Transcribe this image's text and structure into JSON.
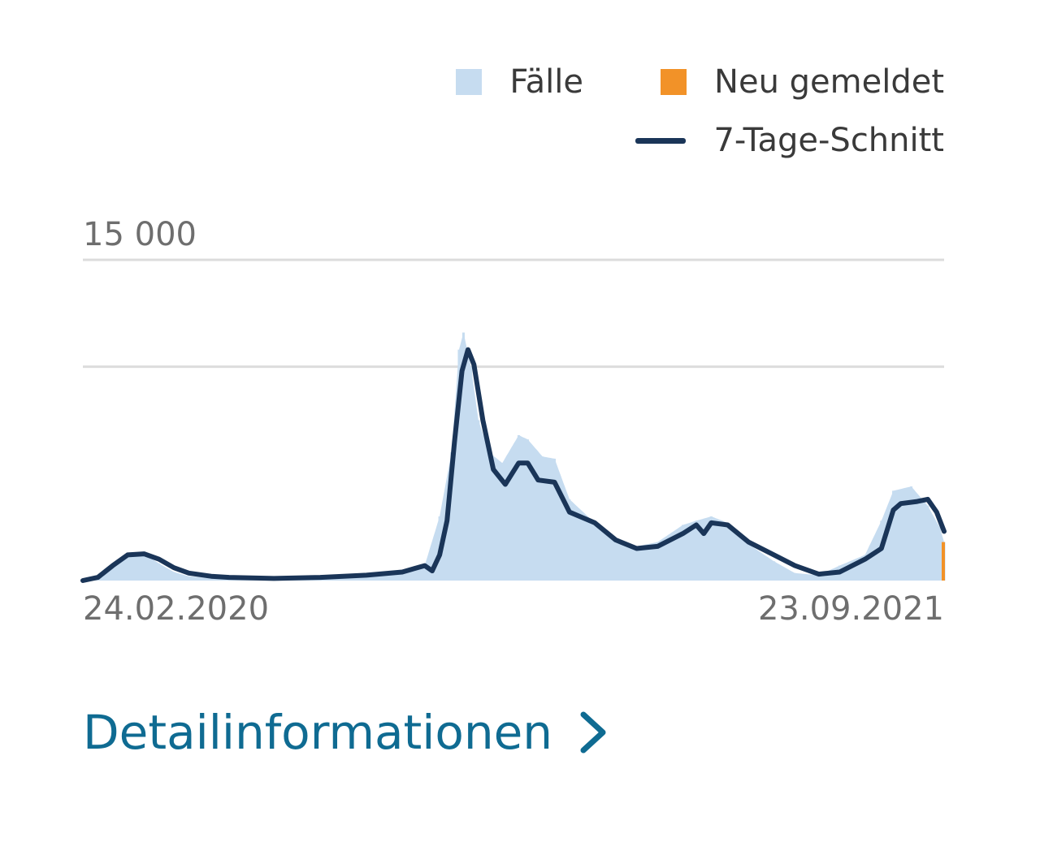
{
  "legend": {
    "cases_label": "Fälle",
    "new_label": "Neu gemeldet",
    "avg_label": "7-Tage-Schnitt"
  },
  "link": {
    "label": "Detailinformationen"
  },
  "chart_data": {
    "type": "bar",
    "title": "",
    "xlabel": "",
    "ylabel": "",
    "x_start": "24.02.2020",
    "x_end": "23.09.2021",
    "ylim": [
      0,
      15000
    ],
    "grid": true,
    "legend_position": "top-right",
    "y_ticks": [
      {
        "value": 15000,
        "label": "15 000"
      },
      {
        "value": 10000,
        "label": ""
      }
    ],
    "x_tick_labels": [
      "24.02.2020",
      "23.09.2021"
    ],
    "colors": {
      "cases": "#c6dcf0",
      "new": "#f29228",
      "avg": "#1a3558",
      "grid": "#dcdcdc",
      "link": "#0f6b92"
    },
    "series": [
      {
        "name": "Fälle",
        "kind": "bar",
        "points": [
          [
            "24.02.2020",
            0
          ],
          [
            "05.03.2020",
            150
          ],
          [
            "15.03.2020",
            700
          ],
          [
            "25.03.2020",
            1300
          ],
          [
            "05.04.2020",
            1250
          ],
          [
            "15.04.2020",
            800
          ],
          [
            "25.04.2020",
            400
          ],
          [
            "05.05.2020",
            200
          ],
          [
            "01.06.2020",
            50
          ],
          [
            "01.07.2020",
            60
          ],
          [
            "01.08.2020",
            150
          ],
          [
            "01.09.2020",
            300
          ],
          [
            "25.09.2020",
            400
          ],
          [
            "10.10.2020",
            700
          ],
          [
            "20.10.2020",
            3000
          ],
          [
            "28.10.2020",
            6000
          ],
          [
            "02.11.2020",
            10800
          ],
          [
            "05.11.2020",
            11600
          ],
          [
            "10.11.2020",
            10000
          ],
          [
            "15.11.2020",
            7500
          ],
          [
            "22.11.2020",
            6000
          ],
          [
            "01.12.2020",
            5500
          ],
          [
            "12.12.2020",
            6800
          ],
          [
            "18.12.2020",
            6600
          ],
          [
            "28.12.2020",
            5800
          ],
          [
            "05.01.2021",
            5700
          ],
          [
            "15.01.2021",
            3800
          ],
          [
            "01.02.2021",
            2700
          ],
          [
            "15.02.2021",
            2000
          ],
          [
            "01.03.2021",
            1600
          ],
          [
            "15.03.2021",
            1800
          ],
          [
            "01.04.2021",
            2600
          ],
          [
            "10.04.2021",
            2800
          ],
          [
            "20.04.2021",
            3000
          ],
          [
            "01.05.2021",
            2700
          ],
          [
            "15.05.2021",
            1700
          ],
          [
            "01.06.2021",
            900
          ],
          [
            "15.06.2021",
            350
          ],
          [
            "01.07.2021",
            250
          ],
          [
            "15.07.2021",
            700
          ],
          [
            "01.08.2021",
            1200
          ],
          [
            "12.08.2021",
            2800
          ],
          [
            "20.08.2021",
            4200
          ],
          [
            "01.09.2021",
            4400
          ],
          [
            "12.09.2021",
            3500
          ],
          [
            "20.09.2021",
            2500
          ],
          [
            "23.09.2021",
            1800
          ]
        ]
      },
      {
        "name": "Neu gemeldet",
        "kind": "bar",
        "points": [
          [
            "23.09.2021",
            1800
          ]
        ]
      },
      {
        "name": "7-Tage-Schnitt",
        "kind": "line",
        "points": [
          [
            "24.02.2020",
            0
          ],
          [
            "05.03.2020",
            150
          ],
          [
            "15.03.2020",
            700
          ],
          [
            "25.03.2020",
            1200
          ],
          [
            "05.04.2020",
            1250
          ],
          [
            "15.04.2020",
            1000
          ],
          [
            "25.04.2020",
            600
          ],
          [
            "05.05.2020",
            350
          ],
          [
            "20.05.2020",
            200
          ],
          [
            "01.06.2020",
            150
          ],
          [
            "01.07.2020",
            100
          ],
          [
            "01.08.2020",
            150
          ],
          [
            "01.09.2020",
            250
          ],
          [
            "25.09.2020",
            400
          ],
          [
            "10.10.2020",
            700
          ],
          [
            "15.10.2020",
            450
          ],
          [
            "20.10.2020",
            1200
          ],
          [
            "25.10.2020",
            2800
          ],
          [
            "30.10.2020",
            6500
          ],
          [
            "04.11.2020",
            9800
          ],
          [
            "08.11.2020",
            10800
          ],
          [
            "12.11.2020",
            10100
          ],
          [
            "18.11.2020",
            7500
          ],
          [
            "25.11.2020",
            5200
          ],
          [
            "03.12.2020",
            4500
          ],
          [
            "12.12.2020",
            5500
          ],
          [
            "18.12.2020",
            5500
          ],
          [
            "25.12.2020",
            4700
          ],
          [
            "05.01.2021",
            4600
          ],
          [
            "15.01.2021",
            3200
          ],
          [
            "01.02.2021",
            2700
          ],
          [
            "15.02.2021",
            1900
          ],
          [
            "01.03.2021",
            1500
          ],
          [
            "15.03.2021",
            1600
          ],
          [
            "01.04.2021",
            2200
          ],
          [
            "10.04.2021",
            2600
          ],
          [
            "15.04.2021",
            2200
          ],
          [
            "20.04.2021",
            2700
          ],
          [
            "01.05.2021",
            2600
          ],
          [
            "15.05.2021",
            1800
          ],
          [
            "01.06.2021",
            1200
          ],
          [
            "15.06.2021",
            700
          ],
          [
            "01.07.2021",
            300
          ],
          [
            "15.07.2021",
            400
          ],
          [
            "01.08.2021",
            1000
          ],
          [
            "12.08.2021",
            1500
          ],
          [
            "20.08.2021",
            3300
          ],
          [
            "25.08.2021",
            3600
          ],
          [
            "05.09.2021",
            3700
          ],
          [
            "12.09.2021",
            3800
          ],
          [
            "18.09.2021",
            3200
          ],
          [
            "23.09.2021",
            2300
          ]
        ]
      }
    ]
  }
}
